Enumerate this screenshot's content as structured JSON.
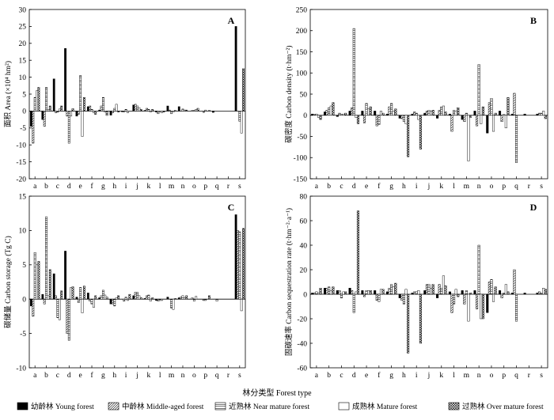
{
  "figure": {
    "xtitle": "林分类型 Forest type",
    "legend": [
      {
        "name": "幼龄林 Young forest",
        "pattern": "young"
      },
      {
        "name": "中龄林 Middle-aged forest",
        "pattern": "middle"
      },
      {
        "name": "近熟林 Near mature forest",
        "pattern": "near"
      },
      {
        "name": "成熟林 Mature forest",
        "pattern": "mature"
      },
      {
        "name": "过熟林 Over mature forest",
        "pattern": "over"
      }
    ]
  },
  "chart_data": [
    {
      "id": "A",
      "type": "bar",
      "title": "A",
      "ylabel": "面积 Area (×10⁴ hm²)",
      "ylim": [
        -20,
        30
      ],
      "yticks": [
        -20,
        -15,
        -10,
        -5,
        0,
        5,
        10,
        15,
        20,
        25,
        30
      ],
      "categories": [
        "a",
        "b",
        "c",
        "d",
        "e",
        "f",
        "g",
        "h",
        "i",
        "j",
        "k",
        "l",
        "m",
        "n",
        "o",
        "p",
        "q",
        "r",
        "s"
      ],
      "series": [
        {
          "name": "幼龄林 Young forest",
          "values": [
            -4.5,
            -2.5,
            9.5,
            18.5,
            -1.5,
            1.3,
            0.3,
            -1.2,
            -0.2,
            1.8,
            0.2,
            -0.3,
            1.5,
            1.3,
            0,
            0,
            -0.4,
            0,
            25
          ]
        },
        {
          "name": "中龄林 Middle-aged forest",
          "values": [
            -9.5,
            -4.5,
            -0.5,
            -1.5,
            -1,
            1.5,
            1.5,
            -0.5,
            -0.3,
            2,
            0.8,
            -0.8,
            0.3,
            0,
            0.2,
            -0.4,
            0,
            0,
            0
          ]
        },
        {
          "name": "近熟林 Near mature forest",
          "values": [
            4,
            7,
            -0.3,
            -9.5,
            10.5,
            0.5,
            4,
            0.8,
            0.5,
            1.5,
            0.5,
            -0.2,
            -0.8,
            0.6,
            0.2,
            0.3,
            0,
            0,
            -3
          ]
        },
        {
          "name": "成熟林 Mature forest",
          "values": [
            6,
            0.5,
            0.6,
            -1.5,
            -7.5,
            -0.5,
            -0.3,
            2,
            -0.5,
            1,
            -0.3,
            -0.5,
            -0.3,
            0.3,
            0.5,
            0,
            0,
            0,
            -6.5
          ]
        },
        {
          "name": "过熟林 Over mature forest",
          "values": [
            7,
            1.5,
            1.5,
            0.7,
            4,
            -1,
            -1.3,
            -0.3,
            0,
            0.5,
            0.5,
            -0.3,
            0.2,
            0.3,
            0.8,
            0.2,
            0,
            0,
            12.5
          ]
        }
      ]
    },
    {
      "id": "B",
      "type": "bar",
      "title": "B",
      "ylabel": "碳密度 Carbon density (t·hm⁻²)",
      "ylim": [
        -150,
        250
      ],
      "yticks": [
        -150,
        -100,
        -50,
        0,
        50,
        100,
        150,
        200,
        250
      ],
      "categories": [
        "a",
        "b",
        "c",
        "d",
        "e",
        "f",
        "g",
        "h",
        "i",
        "j",
        "k",
        "l",
        "m",
        "n",
        "o",
        "p",
        "q",
        "r",
        "s"
      ],
      "series": [
        {
          "name": "幼龄林 Young forest",
          "values": [
            3,
            8,
            -3,
            10,
            10,
            10,
            3,
            -7,
            3,
            5,
            -7,
            3,
            -10,
            10,
            -42,
            10,
            3,
            3,
            3
          ]
        },
        {
          "name": "中龄林 Middle-aged forest",
          "values": [
            2,
            12,
            5,
            18,
            -18,
            -25,
            20,
            -8,
            8,
            10,
            12,
            -38,
            -15,
            -25,
            30,
            -15,
            52,
            0,
            5
          ]
        },
        {
          "name": "近熟林 Near mature forest",
          "values": [
            3,
            18,
            2,
            205,
            28,
            -22,
            28,
            -15,
            5,
            12,
            20,
            12,
            5,
            120,
            40,
            2,
            -112,
            0,
            5
          ]
        },
        {
          "name": "成熟林 Mature forest",
          "values": [
            -5,
            22,
            3,
            -5,
            15,
            10,
            10,
            -20,
            -10,
            10,
            22,
            10,
            -108,
            -20,
            -38,
            -30,
            0,
            0,
            10
          ]
        },
        {
          "name": "过熟林 Over mature forest",
          "values": [
            -10,
            30,
            5,
            -20,
            20,
            5,
            15,
            -98,
            -80,
            12,
            8,
            18,
            -5,
            20,
            5,
            42,
            0,
            0,
            -8
          ]
        }
      ]
    },
    {
      "id": "C",
      "type": "bar",
      "title": "C",
      "ylabel": "碳储量 Carbon storage (Tg C)",
      "ylim": [
        -10,
        15
      ],
      "yticks": [
        -10,
        -5,
        0,
        5,
        10,
        15
      ],
      "categories": [
        "a",
        "b",
        "c",
        "d",
        "e",
        "f",
        "g",
        "h",
        "i",
        "j",
        "k",
        "l",
        "m",
        "n",
        "o",
        "p",
        "q",
        "r",
        "s"
      ],
      "series": [
        {
          "name": "幼龄林 Young forest",
          "values": [
            -1,
            0.7,
            3.7,
            7,
            0.3,
            0.9,
            0.2,
            -0.7,
            0,
            0.5,
            0.1,
            -0.2,
            0.3,
            0.2,
            0,
            0,
            0,
            0,
            12.3
          ]
        },
        {
          "name": "中龄林 Middle-aged forest",
          "values": [
            -2.5,
            -0.7,
            0.5,
            -5,
            -0.5,
            -0.3,
            0.5,
            -0.7,
            -0.3,
            1,
            0.5,
            -0.3,
            0,
            0.3,
            0.2,
            -0.2,
            0,
            0,
            10
          ]
        },
        {
          "name": "近熟林 Near mature forest",
          "values": [
            6.8,
            12,
            -2.7,
            -6,
            1.7,
            -0.7,
            1.3,
            -1,
            0.3,
            1,
            0.6,
            -0.2,
            -1.3,
            0.5,
            -0.3,
            -0.2,
            -0.3,
            0,
            9.8
          ]
        },
        {
          "name": "成熟林 Mature forest",
          "values": [
            5,
            0.5,
            -3,
            1.7,
            -2,
            -1.2,
            0.6,
            0.2,
            -0.2,
            0.5,
            -0.3,
            -0.2,
            -1.5,
            0.2,
            0.4,
            0,
            0,
            0,
            -1.7
          ]
        },
        {
          "name": "过熟林 Over mature forest",
          "values": [
            5.5,
            4.3,
            1.2,
            1.8,
            1.9,
            0.5,
            0.3,
            0.5,
            0.7,
            0.2,
            0.2,
            0,
            0.1,
            0.5,
            0,
            0.5,
            0,
            0,
            10.3
          ]
        }
      ]
    },
    {
      "id": "D",
      "type": "bar",
      "title": "D",
      "ylabel": "固碳速率 Carbon sequestration rate (t·hm⁻²·a⁻¹)",
      "ylim": [
        -60,
        80
      ],
      "yticks": [
        -60,
        -40,
        -20,
        0,
        20,
        40,
        60,
        80
      ],
      "categories": [
        "a",
        "b",
        "c",
        "d",
        "e",
        "f",
        "g",
        "h",
        "i",
        "j",
        "k",
        "l",
        "m",
        "n",
        "o",
        "p",
        "q",
        "r",
        "s"
      ],
      "series": [
        {
          "name": "幼龄林 Young forest",
          "values": [
            1,
            5,
            3,
            5,
            3,
            3,
            2,
            -3,
            1,
            3,
            -3,
            2,
            3,
            3,
            -15,
            3,
            1,
            1,
            1
          ]
        },
        {
          "name": "中龄林 Middle-aged forest",
          "values": [
            1,
            5,
            3,
            3,
            -2,
            -5,
            5,
            -5,
            2,
            8,
            8,
            -15,
            -8,
            -12,
            10,
            -3,
            20,
            0,
            2
          ]
        },
        {
          "name": "近熟林 Near mature forest",
          "values": [
            2,
            6,
            -3,
            -15,
            3,
            -6,
            8,
            -8,
            2,
            8,
            5,
            -8,
            3,
            40,
            12,
            1,
            -22,
            0,
            1
          ]
        },
        {
          "name": "成熟林 Mature forest",
          "values": [
            1,
            3,
            2,
            2,
            3,
            4,
            6,
            4,
            3,
            5,
            15,
            4,
            -22,
            -20,
            -6,
            8,
            0,
            0,
            5
          ]
        },
        {
          "name": "过熟林 Over mature forest",
          "values": [
            5,
            6,
            2,
            68,
            3,
            4,
            9,
            -48,
            -40,
            8,
            7,
            -2,
            1,
            -20,
            6,
            2,
            0,
            0,
            4
          ]
        }
      ]
    }
  ]
}
